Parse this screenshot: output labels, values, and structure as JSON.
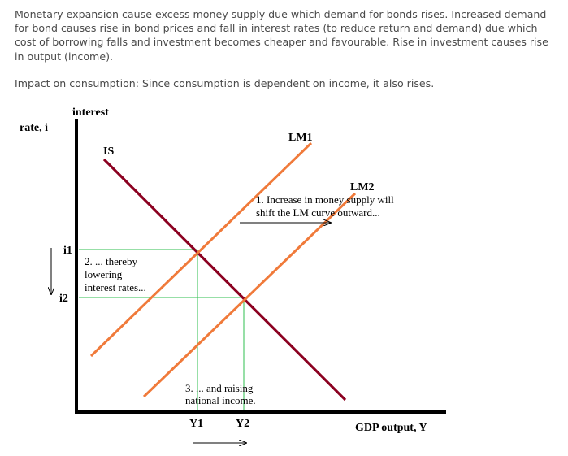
{
  "text": {
    "paragraph1": "Monetary expansion cause excess money supply due which demand for bonds rises. Increased demand for bond causes rise in bond prices and fall in interest rates (to reduce return and demand) due which cost of borrowing falls and investment becomes cheaper and favourable. Rise in investment causes rise in output (income).",
    "paragraph2": "Impact on consumption: Since consumption is dependent on income, it also rises."
  },
  "diagram": {
    "y_axis_label_line1": "interest",
    "y_axis_label_line2": "rate, i",
    "x_axis_label": "GDP output, Y",
    "curves": {
      "is": "IS",
      "lm1": "LM1",
      "lm2": "LM2"
    },
    "levels": {
      "i1": "i1",
      "i2": "i2",
      "y1": "Y1",
      "y2": "Y2"
    },
    "annotations": {
      "step1_line1": "1. Increase in money supply will",
      "step1_line2": "shift the LM curve outward...",
      "step2_line1": "2. ... thereby",
      "step2_line2": "lowering",
      "step2_line3": "interest rates...",
      "step3_line1": "3. ... and raising",
      "step3_line2": "national income."
    },
    "colors": {
      "is_curve": "#8b0020",
      "lm_curves": "#f07a3a",
      "guides": "#2fbf4f",
      "axes": "#000000"
    }
  }
}
